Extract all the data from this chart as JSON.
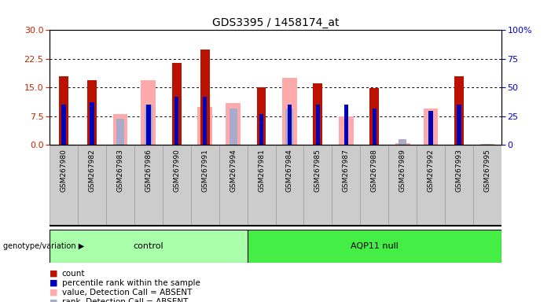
{
  "title": "GDS3395 / 1458174_at",
  "samples": [
    "GSM267980",
    "GSM267982",
    "GSM267983",
    "GSM267986",
    "GSM267990",
    "GSM267991",
    "GSM267994",
    "GSM267981",
    "GSM267984",
    "GSM267985",
    "GSM267987",
    "GSM267988",
    "GSM267989",
    "GSM267992",
    "GSM267993",
    "GSM267995"
  ],
  "count_values": [
    18.0,
    17.0,
    0,
    0,
    21.5,
    25.0,
    0,
    15.0,
    0,
    16.0,
    0,
    14.8,
    0,
    0,
    18.0,
    0
  ],
  "percentile_values": [
    35,
    37,
    0,
    35,
    42,
    42,
    0,
    27,
    35,
    35,
    35,
    32,
    0,
    30,
    35,
    0
  ],
  "absent_value_values": [
    0,
    0,
    8.0,
    17.0,
    0,
    10.0,
    11.0,
    0,
    17.5,
    0,
    7.5,
    0,
    0.5,
    9.5,
    0,
    0.3
  ],
  "absent_rank_values": [
    0,
    0,
    23,
    35,
    0,
    0,
    32,
    0,
    32,
    0,
    0,
    0,
    5,
    0,
    0,
    1
  ],
  "groups": [
    "control",
    "control",
    "control",
    "control",
    "control",
    "control",
    "control",
    "AQP11 null",
    "AQP11 null",
    "AQP11 null",
    "AQP11 null",
    "AQP11 null",
    "AQP11 null",
    "AQP11 null",
    "AQP11 null",
    "AQP11 null"
  ],
  "n_control": 7,
  "n_aqp11": 9,
  "bar_color_count": "#bb1100",
  "bar_color_percentile": "#0000bb",
  "bar_color_absent_value": "#ffaaaa",
  "bar_color_absent_rank": "#aaaacc",
  "ylim_left": [
    0,
    30
  ],
  "ylim_right": [
    0,
    100
  ],
  "yticks_left": [
    0,
    7.5,
    15,
    22.5,
    30
  ],
  "yticks_right": [
    0,
    25,
    50,
    75,
    100
  ],
  "ylabel_left_color": "#cc2200",
  "ylabel_right_color": "#0000cc",
  "genotype_label": "genotype/variation",
  "group_control_color": "#aaffaa",
  "group_aqp11_color": "#44ee44",
  "legend_items": [
    [
      "#bb1100",
      "count"
    ],
    [
      "#0000bb",
      "percentile rank within the sample"
    ],
    [
      "#ffaaaa",
      "value, Detection Call = ABSENT"
    ],
    [
      "#aaaacc",
      "rank, Detection Call = ABSENT"
    ]
  ]
}
